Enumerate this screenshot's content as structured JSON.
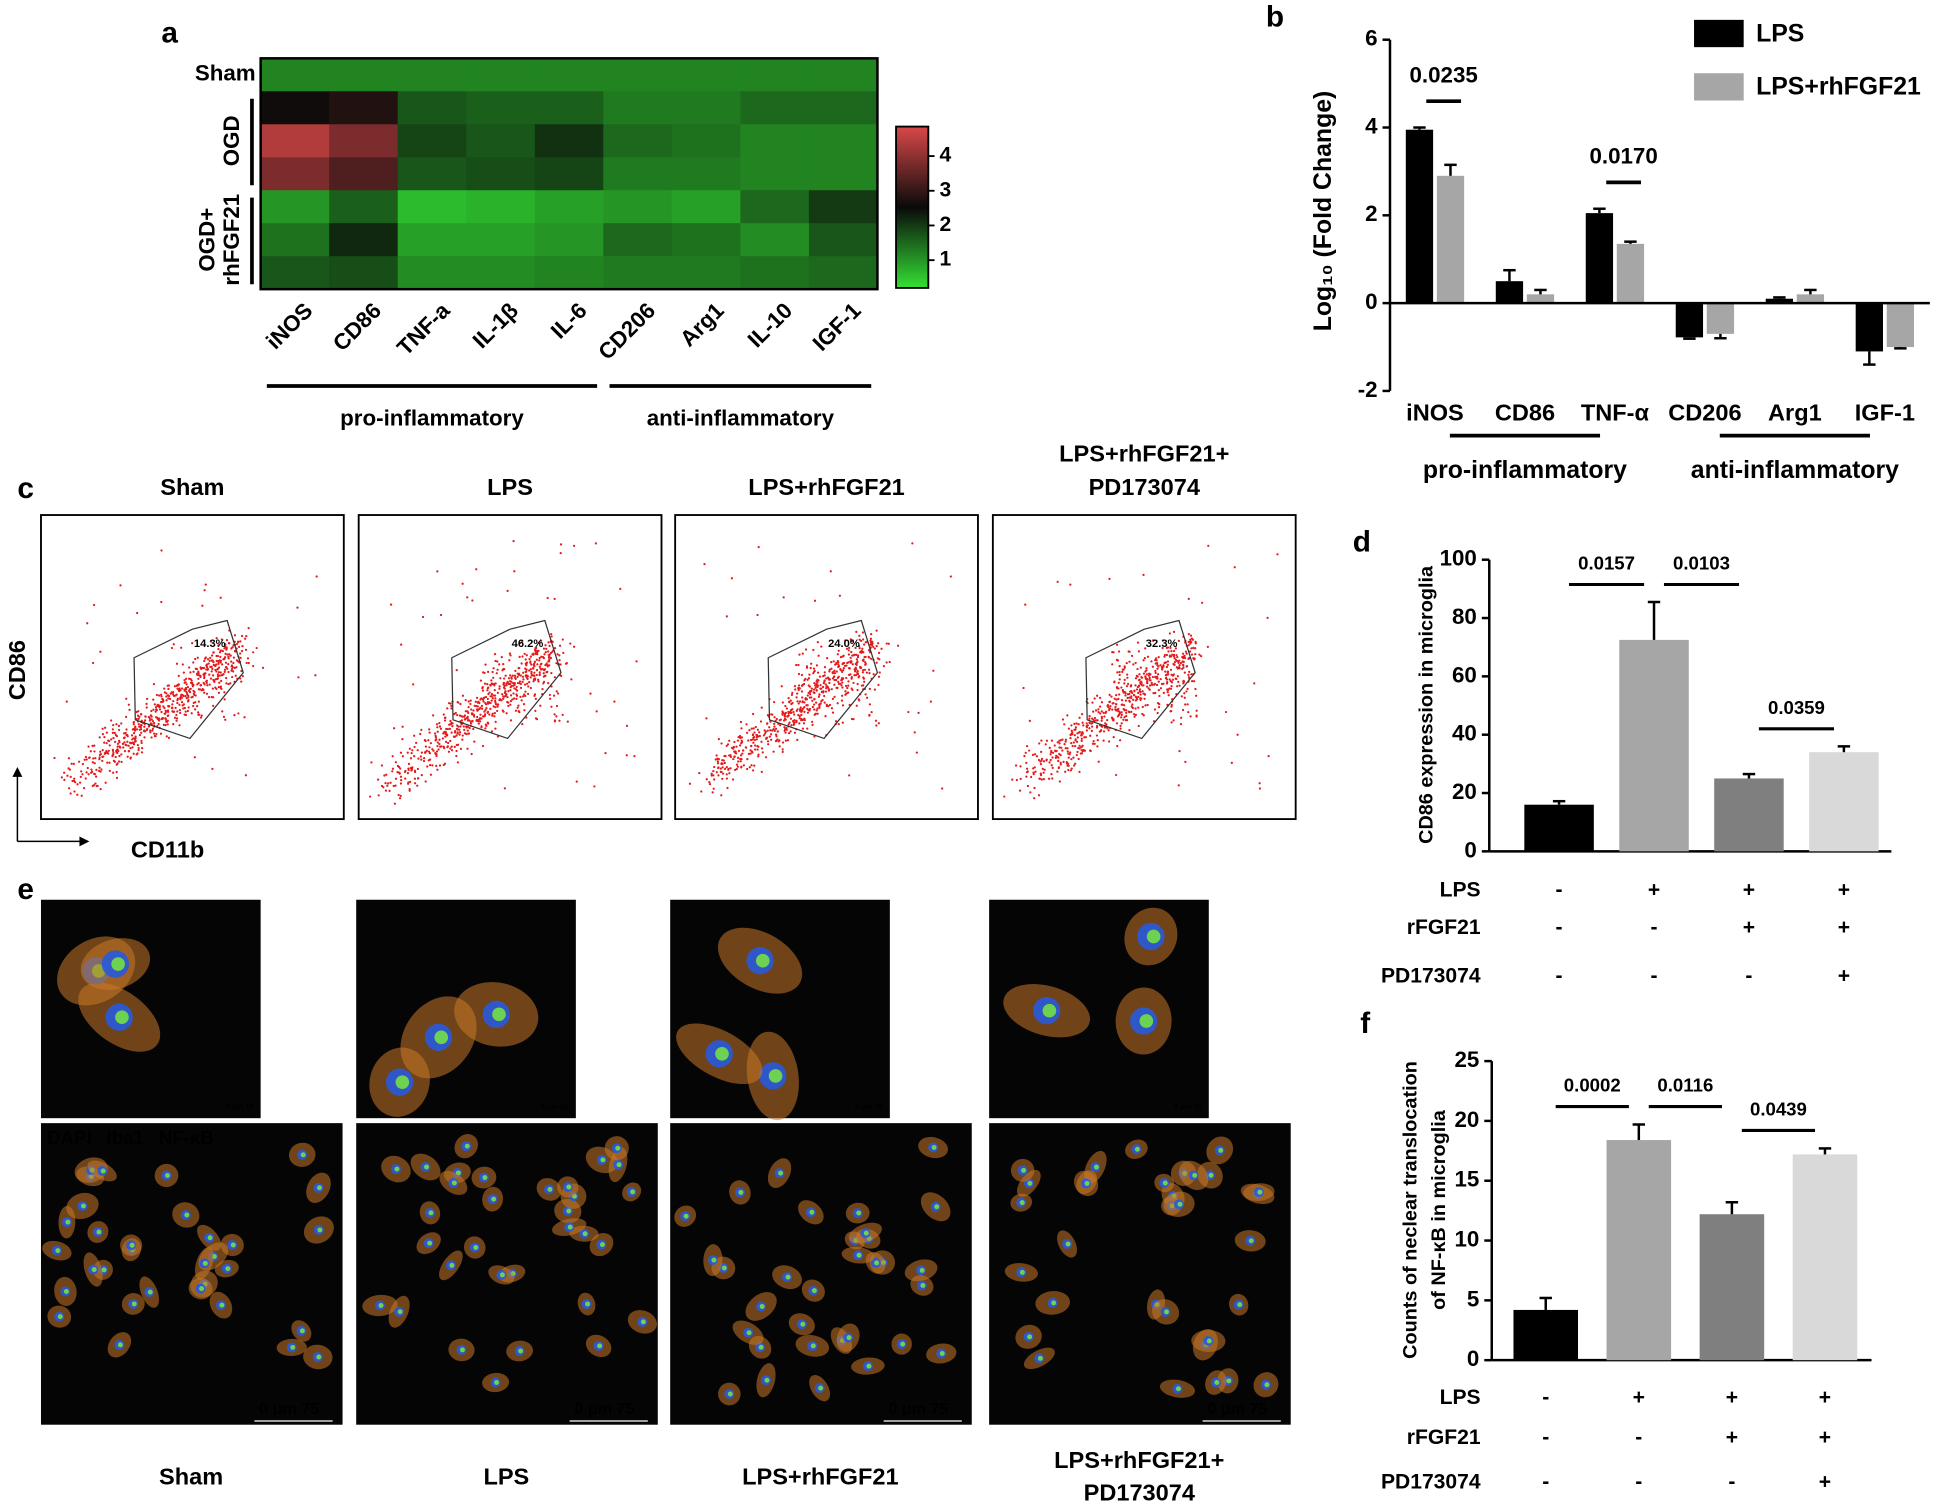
{
  "chart_data": [
    {
      "type": "heatmap",
      "label": "a",
      "categories": [
        "iNOS",
        "CD86",
        "TNF-a",
        "IL-1β",
        "IL-6",
        "CD206",
        "Arg1",
        "IL-10",
        "IGF-1"
      ],
      "groups": [
        {
          "name": [
            "Sham"
          ],
          "values": [
            [
              1.2,
              1.2,
              1.2,
              1.2,
              1.2,
              1.2,
              1.2,
              1.2,
              1.2
            ]
          ]
        },
        {
          "name": [
            "OGD"
          ],
          "values": [
            [
              2.6,
              2.8,
              1.7,
              1.6,
              1.6,
              1.3,
              1.3,
              1.5,
              1.5
            ],
            [
              4.4,
              3.8,
              1.9,
              1.7,
              2.1,
              1.5,
              1.4,
              1.2,
              1.2
            ],
            [
              3.8,
              3.3,
              1.7,
              1.8,
              1.9,
              1.3,
              1.3,
              1.2,
              1.2
            ]
          ]
        },
        {
          "name": [
            "OGD+",
            "rhFGF21"
          ],
          "values": [
            [
              1.0,
              1.6,
              0.6,
              0.7,
              0.9,
              1.0,
              0.9,
              1.5,
              2.0
            ],
            [
              1.4,
              2.2,
              0.9,
              0.9,
              1.0,
              1.5,
              1.4,
              1.1,
              1.7
            ],
            [
              1.7,
              1.8,
              1.1,
              1.1,
              1.2,
              1.3,
              1.3,
              1.4,
              1.5
            ]
          ]
        }
      ],
      "column_groups": [
        "pro-inflammatory",
        "anti-inflammatory"
      ],
      "zlim": [
        0.2,
        4.85
      ],
      "zticks": [
        1,
        2,
        3,
        4
      ],
      "colors": [
        "#33e033",
        "#0a0a0a",
        "#d94848"
      ]
    },
    {
      "type": "bar",
      "label": "b",
      "ylabel": [
        "Log₁₀ (Fold Change)"
      ],
      "categories": [
        "iNOS",
        "CD86",
        "TNF-α",
        "CD206",
        "Arg1",
        "IGF-1"
      ],
      "category_groups": [
        "pro-inflammatory",
        "anti-inflammatory"
      ],
      "series": [
        {
          "name": "LPS",
          "color": "#000000",
          "values": [
            3.95,
            0.5,
            2.05,
            -0.78,
            0.1,
            -1.1
          ],
          "errors": [
            0.05,
            0.25,
            0.1,
            0.03,
            0.03,
            0.3
          ]
        },
        {
          "name": "LPS+rhFGF21",
          "color": "#a6a6a6",
          "values": [
            2.9,
            0.2,
            1.35,
            -0.7,
            0.2,
            -1.0
          ],
          "errors": [
            0.25,
            0.1,
            0.05,
            0.1,
            0.1,
            0.03
          ]
        }
      ],
      "ylim": [
        -2,
        6
      ],
      "yticks": [
        -2,
        0,
        2,
        4,
        6
      ],
      "annotations": [
        {
          "text": "0.0235",
          "category": "iNOS"
        },
        {
          "text": "0.0170",
          "category": "TNF-α"
        }
      ]
    },
    {
      "type": "bar",
      "label": "d",
      "ylabel": [
        "CD86 expression in microglia"
      ],
      "values": [
        16,
        72.5,
        25,
        34
      ],
      "errors": [
        1.2,
        13,
        1.5,
        2
      ],
      "colors": [
        "#000000",
        "#a6a6a6",
        "#7f7f7f",
        "#d9d9d9"
      ],
      "ylim": [
        0,
        100
      ],
      "yticks": [
        0,
        20,
        40,
        60,
        80,
        100
      ],
      "conditions": [
        {
          "name": "LPS",
          "signs": [
            "-",
            "+",
            "+",
            "+"
          ]
        },
        {
          "name": "rFGF21",
          "signs": [
            "-",
            "-",
            "+",
            "+"
          ]
        },
        {
          "name": "PD173074",
          "signs": [
            "-",
            "-",
            "-",
            "+"
          ]
        }
      ],
      "annotations": [
        {
          "text": "0.0157",
          "between": [
            0,
            1
          ]
        },
        {
          "text": "0.0103",
          "between": [
            1,
            2
          ]
        },
        {
          "text": "0.0359",
          "between": [
            2,
            3
          ]
        }
      ]
    },
    {
      "type": "bar",
      "label": "f",
      "ylabel": [
        "Counts of neclear translocation",
        "of NF-κB in microglia"
      ],
      "values": [
        4.2,
        18.4,
        12.2,
        17.2
      ],
      "errors": [
        1,
        1.3,
        1,
        0.5
      ],
      "colors": [
        "#000000",
        "#a6a6a6",
        "#7f7f7f",
        "#d9d9d9"
      ],
      "ylim": [
        0,
        25
      ],
      "yticks": [
        0,
        5,
        10,
        15,
        20,
        25
      ],
      "conditions": [
        {
          "name": "LPS",
          "signs": [
            "-",
            "+",
            "+",
            "+"
          ]
        },
        {
          "name": "rFGF21",
          "signs": [
            "-",
            "-",
            "+",
            "+"
          ]
        },
        {
          "name": "PD173074",
          "signs": [
            "-",
            "-",
            "-",
            "+"
          ]
        }
      ],
      "annotations": [
        {
          "text": "0.0002",
          "between": [
            0,
            1
          ]
        },
        {
          "text": "0.0116",
          "between": [
            1,
            2
          ]
        },
        {
          "text": "0.0439",
          "between": [
            2,
            3
          ]
        }
      ]
    }
  ],
  "panel_c": {
    "label": "c",
    "ylabel": "CD86",
    "xlabel": "CD11b",
    "plots": [
      {
        "title": [
          "Sham"
        ],
        "gate": "14.3%"
      },
      {
        "title": [
          "LPS"
        ],
        "gate": "46.2%"
      },
      {
        "title": [
          "LPS+rhFGF21"
        ],
        "gate": "24.0%"
      },
      {
        "title": [
          "LPS+rhFGF21+",
          "PD173074"
        ],
        "gate": "32.3%"
      }
    ]
  },
  "panel_e": {
    "label": "e",
    "stains": [
      "DAPI",
      "Iba1",
      "NF-κB"
    ],
    "scale_small": "0 μm 10",
    "scale_large": "0   μm  75",
    "images": [
      {
        "title": [
          "Sham"
        ]
      },
      {
        "title": [
          "LPS"
        ]
      },
      {
        "title": [
          "LPS+rhFGF21"
        ]
      },
      {
        "title": [
          "LPS+rhFGF21+",
          "PD173074"
        ]
      }
    ]
  }
}
